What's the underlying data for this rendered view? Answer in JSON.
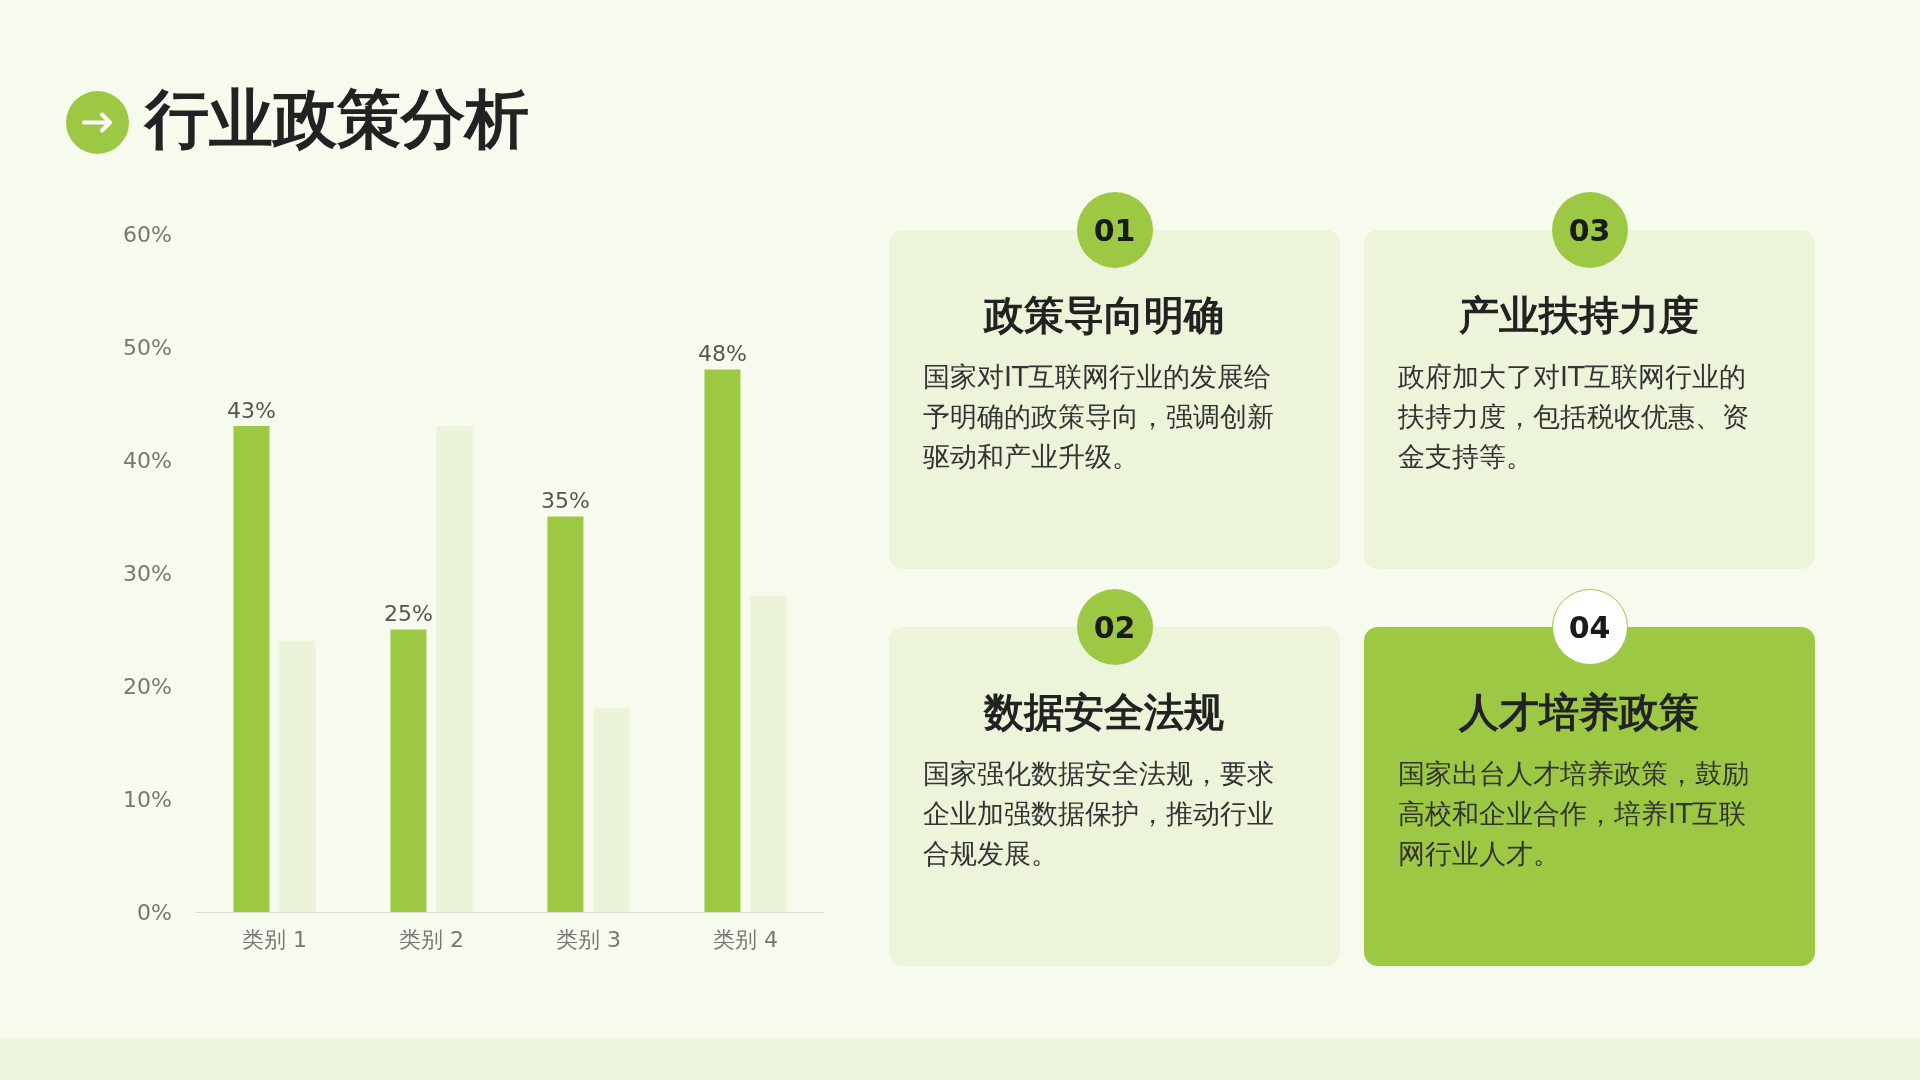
{
  "chart_data": [
    {
      "type": "bar",
      "title": "行业政策分析",
      "categories": [
        "类别 1",
        "类别 2",
        "类别 3",
        "类别 4"
      ],
      "series": [
        {
          "color": "#9dc843",
          "values": [
            43,
            25,
            35,
            48
          ],
          "value_labels": [
            "43%",
            "25%",
            "35%",
            "48%"
          ]
        },
        {
          "color": "#ebf3d8",
          "values": [
            24,
            43,
            18,
            28
          ]
        }
      ],
      "ylim": [
        0,
        60
      ],
      "yticks": [
        {
          "value": 0,
          "label": "0%"
        },
        {
          "value": 10,
          "label": "10%"
        },
        {
          "value": 20,
          "label": "20%"
        },
        {
          "value": 30,
          "label": "30%"
        },
        {
          "value": 40,
          "label": "40%"
        },
        {
          "value": 50,
          "label": "50%"
        },
        {
          "value": 60,
          "label": "60%"
        }
      ],
      "grid": false
    },
    {
      "type": "other",
      "annotations": [
        "01",
        "政策导向明确",
        "国家对IT互联网行业的发展给予明确的政策导向，强调创新驱动和产业升级。",
        "02",
        "数据安全法规",
        "国家强化数据安全法规，要求企业加强数据保护，推动行业合规发展。",
        "03",
        "产业扶持力度",
        "政府加大了对IT互联网行业的扶持力度，包括税收优惠、资金支持等。",
        "04",
        "人才培养政策",
        "国家出台人才培养政策，鼓励高校和企业合作，培养IT互联网行业人才。"
      ]
    }
  ]
}
